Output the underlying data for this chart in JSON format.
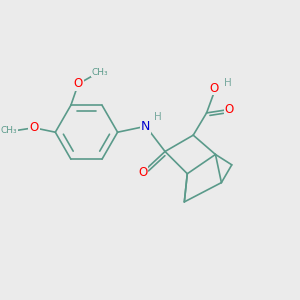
{
  "bg_color": "#ebebeb",
  "bond_color": "#5a9a8a",
  "atom_colors": {
    "O": "#ff0000",
    "N": "#0000cc",
    "H": "#7aaba0",
    "C": "#5a9a8a"
  },
  "font_size": 8.5,
  "line_width": 1.2
}
